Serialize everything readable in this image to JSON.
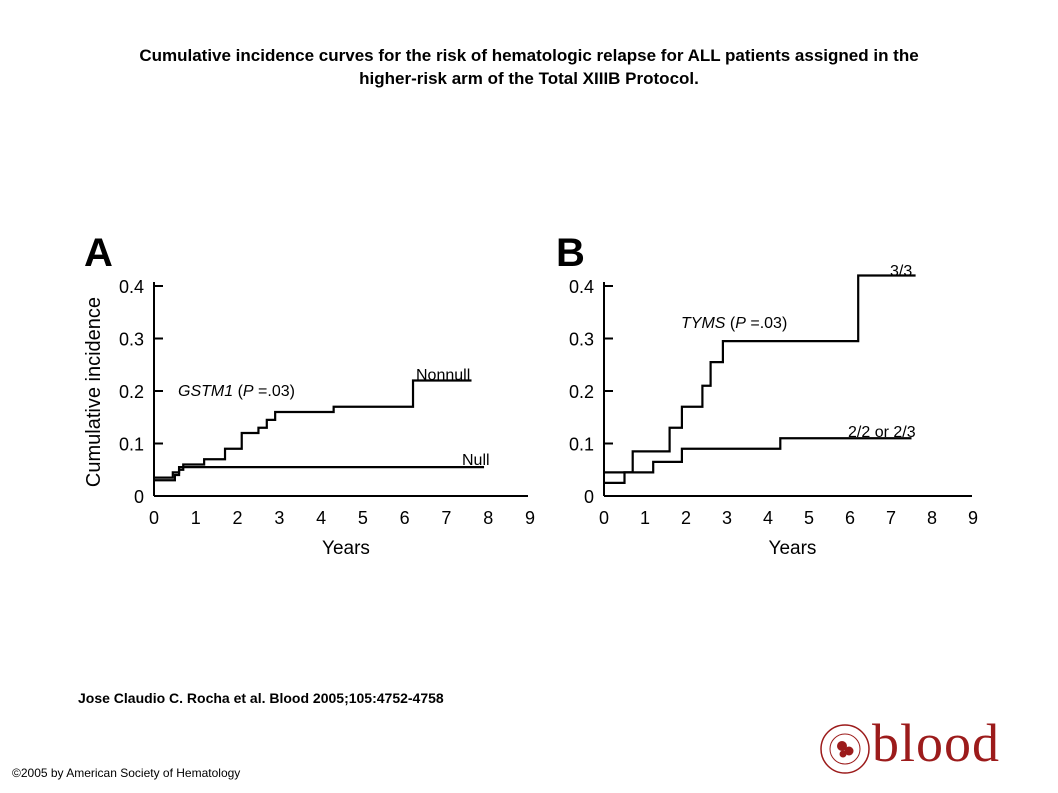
{
  "title": {
    "line1": "Cumulative incidence curves for the risk of hematologic relapse for ALL patients assigned in the",
    "line2": "higher-risk arm of the Total XIIIB Protocol."
  },
  "citation": "Jose Claudio C. Rocha et al. Blood 2005;105:4752-4758",
  "copyright": "©2005 by American Society of Hematology",
  "logo": {
    "word": "blood",
    "seal_text": "AMERICAN SOCIETY OF HEMATOLOGY",
    "color": "#9c1b1b"
  },
  "chart_data": [
    {
      "type": "line",
      "step": true,
      "panel_letter": "A",
      "xlabel": "Years",
      "ylabel": "Cumulative incidence",
      "xlim": [
        0,
        9
      ],
      "ylim": [
        0,
        0.4
      ],
      "xticks": [
        "0",
        "1",
        "2",
        "3",
        "4",
        "5",
        "6",
        "7",
        "8",
        "9"
      ],
      "yticks": [
        "0",
        "0.1",
        "0.2",
        "0.3",
        "0.4"
      ],
      "grid": false,
      "annotation": {
        "gene": "GSTM1",
        "open": " (",
        "p": "P",
        "rest": " =.03)"
      },
      "series": [
        {
          "name": "Nonnull",
          "x": [
            0,
            0.5,
            0.6,
            0.7,
            1.2,
            1.7,
            2.1,
            2.5,
            2.7,
            2.9,
            4.3,
            6.2,
            7.6
          ],
          "y": [
            0.03,
            0.04,
            0.05,
            0.06,
            0.07,
            0.09,
            0.12,
            0.13,
            0.145,
            0.16,
            0.17,
            0.22,
            0.22
          ]
        },
        {
          "name": "Null",
          "x": [
            0,
            0.45,
            0.6,
            7.9
          ],
          "y": [
            0.035,
            0.045,
            0.055,
            0.055
          ]
        }
      ]
    },
    {
      "type": "line",
      "step": true,
      "panel_letter": "B",
      "xlabel": "Years",
      "ylabel": "",
      "xlim": [
        0,
        9
      ],
      "ylim": [
        0,
        0.4
      ],
      "xticks": [
        "0",
        "1",
        "2",
        "3",
        "4",
        "5",
        "6",
        "7",
        "8",
        "9"
      ],
      "yticks": [
        "0",
        "0.1",
        "0.2",
        "0.3",
        "0.4"
      ],
      "grid": false,
      "annotation": {
        "gene": "TYMS",
        "open": " (",
        "p": "P",
        "rest": " =.03)"
      },
      "series": [
        {
          "name": "3/3",
          "x": [
            0,
            0.5,
            0.7,
            1.6,
            1.9,
            2.4,
            2.6,
            2.9,
            6.2,
            7.6
          ],
          "y": [
            0.025,
            0.045,
            0.085,
            0.13,
            0.17,
            0.21,
            0.255,
            0.295,
            0.42,
            0.42
          ]
        },
        {
          "name": "2/2 or 2/3",
          "x": [
            0,
            0.7,
            1.2,
            1.9,
            4.3,
            7.5
          ],
          "y": [
            0.045,
            0.045,
            0.065,
            0.09,
            0.11,
            0.11
          ]
        }
      ]
    }
  ]
}
